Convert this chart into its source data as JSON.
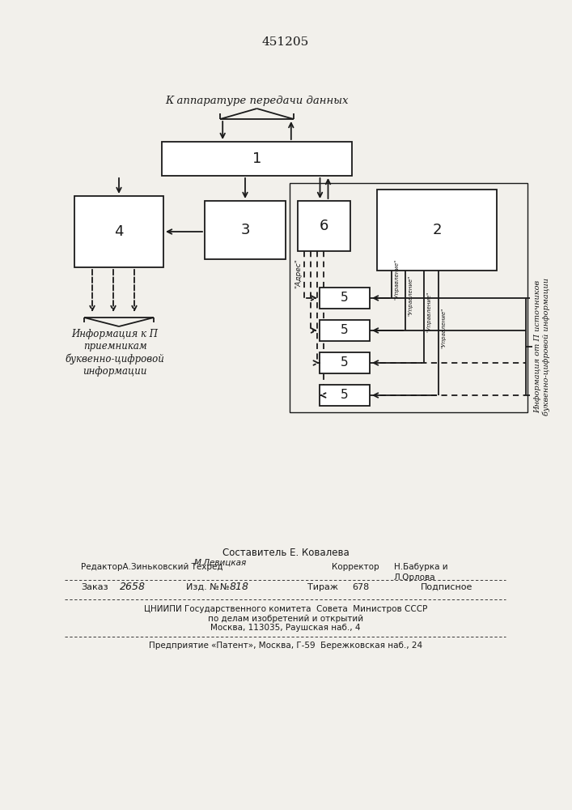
{
  "patent_number": "451205",
  "title_top": "К аппаратуре передачи данных",
  "label_left_bottom": "Информация к П\nприемникам\nбуквенно-цифровой\nинформации",
  "block1_label": "1",
  "block2_label": "2",
  "block3_label": "3",
  "block4_label": "4",
  "block5_label": "5",
  "block6_label": "6",
  "addr_label": "\"Адрес\"",
  "ctrl_label": "\"Управление\"",
  "right_label_line1": "Информация от П источников",
  "right_label_line2": "буквенно-цифровой информации",
  "composer": "Составитель Е. Ковалева",
  "editor_left": "РедакторА.Зиньковский Техред",
  "editor_mid": "М.Левицкая",
  "corrector_label": "Корректор",
  "corrector_name1": "Н.Бабурка и",
  "corrector_name2": "Л.Орлова",
  "order_label": "Заказ",
  "order_num": "2658",
  "edition_label": "Изд. №",
  "edition_num": "818",
  "tirazh_label": "Тираж",
  "tirazh_num": "678",
  "podpisnoe": "Подписное",
  "publisher1": "ЦНИИПИ Государственного комитета  Совета  Министров СССР",
  "publisher2": "по делам изобретений и открытий",
  "publisher3": "Москва, 113035, Раушская наб., 4",
  "publisher4": "Предприятие «Патент», Москва, Г-59  Бережковская наб., 24",
  "bg_color": "#f2f0eb",
  "line_color": "#1a1a1a"
}
